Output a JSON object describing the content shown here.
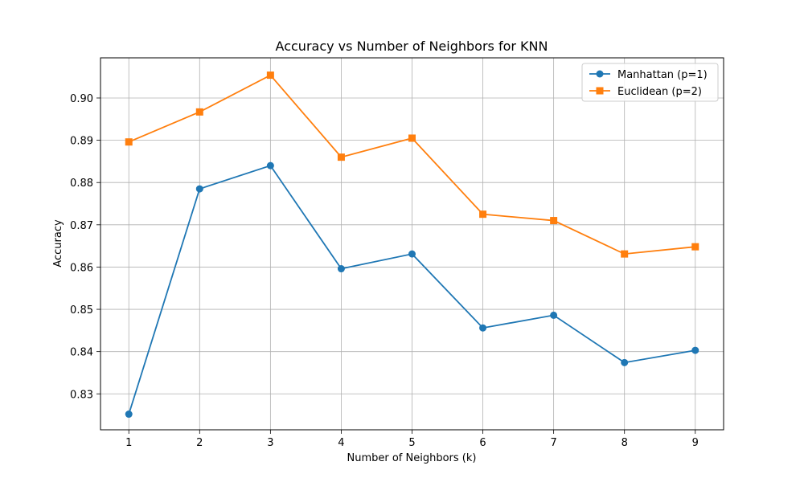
{
  "chart_data": {
    "type": "line",
    "title": "Accuracy vs Number of Neighbors for KNN",
    "xlabel": "Number of Neighbors (k)",
    "ylabel": "Accuracy",
    "x": [
      1,
      2,
      3,
      4,
      5,
      6,
      7,
      8,
      9
    ],
    "xticks": [
      1,
      2,
      3,
      4,
      5,
      6,
      7,
      8,
      9
    ],
    "yticks": [
      0.83,
      0.84,
      0.85,
      0.86,
      0.87,
      0.88,
      0.89,
      0.9
    ],
    "ytick_labels": [
      "0.83",
      "0.84",
      "0.85",
      "0.86",
      "0.87",
      "0.88",
      "0.89",
      "0.90"
    ],
    "xlim": [
      0.6,
      9.4
    ],
    "ylim": [
      0.8215,
      0.9095
    ],
    "grid": true,
    "legend_position": "top-right",
    "series": [
      {
        "name": "Manhattan (p=1)",
        "color": "#1f77b4",
        "marker": "circle",
        "values": [
          0.8252,
          0.8785,
          0.884,
          0.8596,
          0.8631,
          0.8456,
          0.8486,
          0.8374,
          0.8403
        ]
      },
      {
        "name": "Euclidean (p=2)",
        "color": "#ff7f0e",
        "marker": "square",
        "values": [
          0.8896,
          0.8967,
          0.9054,
          0.886,
          0.8905,
          0.8725,
          0.871,
          0.8631,
          0.8648
        ]
      }
    ]
  }
}
